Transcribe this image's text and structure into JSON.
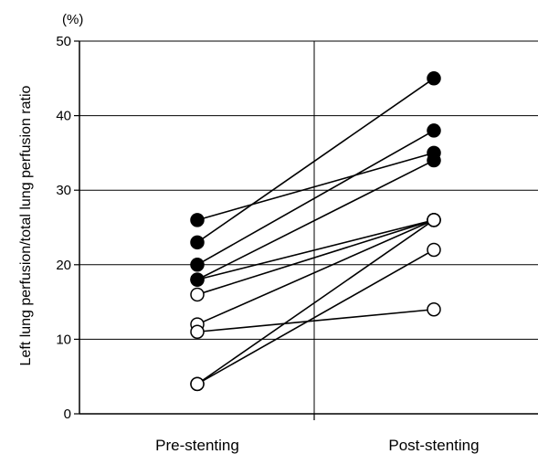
{
  "chart_data": {
    "type": "scatter",
    "subtype": "paired-before-after",
    "title": "",
    "xlabel": "",
    "ylabel": "Left lung perfusion/total lung perfusion ratio",
    "y_unit_label": "(%)",
    "categories": [
      "Pre-stenting",
      "Post-stenting"
    ],
    "ylim": [
      0,
      50
    ],
    "yticks": [
      0,
      10,
      20,
      30,
      40,
      50
    ],
    "grid": true,
    "colors": {
      "filled_marker": "#000000",
      "open_marker": "#ffffff",
      "line": "#000000"
    },
    "marker_legend": {
      "filled": "filled circle",
      "open": "open circle"
    },
    "pairs": [
      {
        "pre": 26,
        "post": 35,
        "marker": "filled"
      },
      {
        "pre": 23,
        "post": 45,
        "marker": "filled"
      },
      {
        "pre": 20,
        "post": 38,
        "marker": "filled"
      },
      {
        "pre": 18,
        "post": 34,
        "marker": "filled"
      },
      {
        "pre": 18,
        "post": 26,
        "marker": "filled"
      },
      {
        "pre": 16,
        "post": 26,
        "marker": "open"
      },
      {
        "pre": 12,
        "post": 26,
        "marker": "open"
      },
      {
        "pre": 11,
        "post": 14,
        "marker": "open"
      },
      {
        "pre": 4,
        "post": 26,
        "marker": "open"
      },
      {
        "pre": 4,
        "post": 22,
        "marker": "open"
      }
    ]
  }
}
